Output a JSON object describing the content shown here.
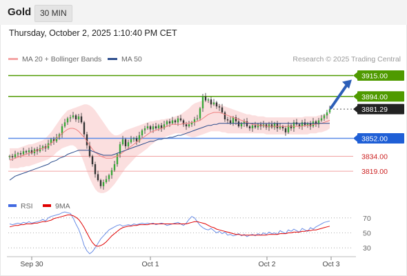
{
  "header": {
    "title": "Gold",
    "timeframe": "30 MIN"
  },
  "datetime": "Thursday, October 2, 2025 1:10:40 PM CET",
  "legend": [
    {
      "label": "MA 20 + Bollinger Bands",
      "color": "#f08080"
    },
    {
      "label": "MA 50",
      "color": "#2b4c8c"
    }
  ],
  "credit": "Research © 2025 Trading Central",
  "rsi_legend": [
    {
      "label": "RSI",
      "color": "#4169e1"
    },
    {
      "label": "9MA",
      "color": "#e00000"
    }
  ],
  "price_levels": [
    {
      "label": "3915.00",
      "value": 3915.0,
      "kind": "target",
      "color": "#4f9a00"
    },
    {
      "label": "3894.00",
      "value": 3894.0,
      "kind": "resistance",
      "color": "#4f9a00"
    },
    {
      "label": "3881.29",
      "value": 3881.29,
      "kind": "last",
      "color": "#222222"
    },
    {
      "label": "3852.00",
      "value": 3852.0,
      "kind": "pivot",
      "color": "#1f5fd6"
    },
    {
      "label": "3834.00",
      "value": 3834.0,
      "kind": "support",
      "color": "#cc2222"
    },
    {
      "label": "3819.00",
      "value": 3819.0,
      "kind": "support",
      "color": "#cc2222"
    }
  ],
  "rsi_ticks": [
    "70",
    "50",
    "30"
  ],
  "x_ticks": [
    "Sep 30",
    "Oct 1",
    "Oct 2",
    "Oct 3"
  ],
  "chart_data": {
    "type": "candlestick",
    "title": "Gold",
    "timeframe": "30 MIN",
    "x_ticks": [
      "Sep 30",
      "Oct 1",
      "Oct 2",
      "Oct 3"
    ],
    "price_range": [
      3790,
      3925
    ],
    "rsi_range": [
      20,
      80
    ],
    "grid": false,
    "last_price": 3881.29,
    "arrow": {
      "direction": "up",
      "target": 3915.0
    },
    "close": [
      3834,
      3833,
      3836,
      3837,
      3836,
      3839,
      3838,
      3840,
      3837,
      3841,
      3839,
      3842,
      3844,
      3842,
      3847,
      3851,
      3849,
      3853,
      3856,
      3864,
      3868,
      3872,
      3873,
      3875,
      3871,
      3874,
      3868,
      3856,
      3845,
      3834,
      3826,
      3816,
      3810,
      3804,
      3808,
      3811,
      3815,
      3820,
      3826,
      3836,
      3846,
      3851,
      3844,
      3848,
      3851,
      3852,
      3849,
      3855,
      3860,
      3862,
      3864,
      3861,
      3864,
      3862,
      3865,
      3862,
      3866,
      3869,
      3867,
      3870,
      3868,
      3872,
      3870,
      3866,
      3864,
      3866,
      3868,
      3871,
      3872,
      3882,
      3894,
      3890,
      3891,
      3886,
      3888,
      3884,
      3883,
      3878,
      3871,
      3870,
      3867,
      3873,
      3869,
      3864,
      3867,
      3869,
      3864,
      3862,
      3865,
      3863,
      3866,
      3864,
      3866,
      3863,
      3866,
      3863,
      3867,
      3862,
      3864,
      3862,
      3858,
      3865,
      3862,
      3868,
      3866,
      3864,
      3868,
      3865,
      3867,
      3864,
      3869,
      3866,
      3870,
      3872,
      3875,
      3878,
      3881.29
    ],
    "ma20": [
      3830,
      3831,
      3832,
      3833,
      3834,
      3835,
      3836,
      3837,
      3838,
      3839,
      3840,
      3841,
      3842,
      3843,
      3845,
      3847,
      3849,
      3852,
      3854,
      3857,
      3859,
      3861,
      3862,
      3862,
      3861,
      3859,
      3856,
      3853,
      3849,
      3845,
      3841,
      3838,
      3836,
      3834,
      3833,
      3832,
      3832,
      3832,
      3833,
      3834,
      3836,
      3838,
      3840,
      3842,
      3844,
      3846,
      3848,
      3850,
      3852,
      3854,
      3856,
      3858,
      3859,
      3860,
      3861,
      3862,
      3863,
      3864,
      3865,
      3866,
      3866,
      3866,
      3866,
      3867,
      3867,
      3867,
      3868,
      3868,
      3869,
      3870,
      3872,
      3874,
      3876,
      3877,
      3878,
      3878,
      3878,
      3877,
      3876,
      3875,
      3874,
      3873,
      3872,
      3871,
      3870,
      3869,
      3868,
      3867,
      3866,
      3866,
      3865,
      3865,
      3865,
      3864,
      3864,
      3864,
      3864,
      3864,
      3864,
      3864,
      3864,
      3864,
      3864,
      3864,
      3864,
      3864,
      3864,
      3865,
      3865,
      3865,
      3866,
      3866,
      3867,
      3867,
      3868,
      3869,
      3870
    ],
    "bb_upper": [
      3842,
      3842,
      3842,
      3842,
      3843,
      3844,
      3845,
      3846,
      3846,
      3847,
      3848,
      3849,
      3850,
      3852,
      3855,
      3858,
      3862,
      3866,
      3870,
      3874,
      3877,
      3880,
      3881,
      3882,
      3883,
      3884,
      3885,
      3886,
      3886,
      3885,
      3883,
      3880,
      3876,
      3872,
      3868,
      3864,
      3860,
      3857,
      3855,
      3855,
      3856,
      3858,
      3860,
      3861,
      3862,
      3863,
      3864,
      3865,
      3866,
      3867,
      3868,
      3869,
      3869,
      3870,
      3870,
      3871,
      3871,
      3872,
      3872,
      3873,
      3874,
      3875,
      3876,
      3878,
      3880,
      3882,
      3885,
      3887,
      3888,
      3889,
      3890,
      3890,
      3890,
      3889,
      3888,
      3887,
      3886,
      3885,
      3884,
      3883,
      3882,
      3881,
      3880,
      3879,
      3878,
      3877,
      3876,
      3876,
      3875,
      3875,
      3874,
      3874,
      3874,
      3873,
      3873,
      3873,
      3873,
      3873,
      3873,
      3873,
      3873,
      3873,
      3873,
      3873,
      3873,
      3873,
      3873,
      3874,
      3874,
      3874,
      3874,
      3874,
      3875,
      3875,
      3876,
      3876,
      3877
    ],
    "bb_lower": [
      3822,
      3822,
      3822,
      3822,
      3823,
      3823,
      3824,
      3824,
      3825,
      3826,
      3827,
      3828,
      3829,
      3830,
      3831,
      3833,
      3835,
      3838,
      3840,
      3842,
      3843,
      3844,
      3845,
      3845,
      3843,
      3839,
      3834,
      3827,
      3819,
      3812,
      3806,
      3801,
      3798,
      3797,
      3797,
      3798,
      3800,
      3803,
      3806,
      3810,
      3814,
      3818,
      3822,
      3825,
      3828,
      3831,
      3834,
      3836,
      3838,
      3840,
      3842,
      3845,
      3847,
      3849,
      3851,
      3852,
      3853,
      3854,
      3855,
      3856,
      3857,
      3857,
      3857,
      3856,
      3855,
      3854,
      3853,
      3853,
      3854,
      3855,
      3856,
      3857,
      3858,
      3859,
      3859,
      3859,
      3859,
      3858,
      3858,
      3857,
      3857,
      3857,
      3857,
      3857,
      3857,
      3857,
      3857,
      3857,
      3857,
      3857,
      3857,
      3857,
      3857,
      3856,
      3856,
      3856,
      3856,
      3856,
      3856,
      3856,
      3856,
      3856,
      3856,
      3856,
      3856,
      3856,
      3856,
      3856,
      3856,
      3857,
      3857,
      3857,
      3858,
      3858,
      3859,
      3860,
      3862
    ],
    "ma50": [
      3810,
      3812,
      3814,
      3815,
      3816,
      3817,
      3818,
      3819,
      3820,
      3821,
      3822,
      3823,
      3824,
      3825,
      3826,
      3828,
      3829,
      3830,
      3832,
      3833,
      3834,
      3836,
      3837,
      3838,
      3839,
      3840,
      3840,
      3840,
      3840,
      3840,
      3839,
      3838,
      3837,
      3836,
      3835,
      3835,
      3835,
      3835,
      3836,
      3837,
      3838,
      3839,
      3840,
      3841,
      3842,
      3843,
      3844,
      3845,
      3846,
      3847,
      3848,
      3849,
      3849,
      3850,
      3851,
      3851,
      3852,
      3852,
      3853,
      3853,
      3854,
      3855,
      3855,
      3856,
      3857,
      3858,
      3859,
      3860,
      3861,
      3862,
      3863,
      3864,
      3865,
      3865,
      3866,
      3866,
      3867,
      3867,
      3867,
      3867,
      3867,
      3867,
      3867,
      3867,
      3867,
      3867,
      3867,
      3867,
      3867,
      3867,
      3867,
      3867,
      3867,
      3867,
      3867,
      3867,
      3867,
      3867,
      3867,
      3867,
      3867,
      3867,
      3867,
      3867,
      3867,
      3867,
      3867,
      3867,
      3867,
      3867,
      3867,
      3867,
      3867,
      3867,
      3867,
      3867,
      3867
    ],
    "rsi": [
      62,
      61,
      62,
      63,
      62,
      64,
      63,
      65,
      63,
      64,
      65,
      66,
      68,
      66,
      70,
      72,
      73,
      74,
      75,
      77,
      78,
      77,
      76,
      70,
      62,
      55,
      45,
      33,
      26,
      22,
      25,
      30,
      36,
      42,
      46,
      50,
      54,
      56,
      58,
      60,
      61,
      59,
      60,
      61,
      60,
      62,
      61,
      62,
      63,
      62,
      63,
      62,
      63,
      61,
      62,
      63,
      62,
      60,
      61,
      62,
      63,
      64,
      62,
      60,
      63,
      68,
      72,
      70,
      65,
      60,
      57,
      55,
      54,
      56,
      53,
      50,
      52,
      49,
      51,
      47,
      48,
      46,
      47,
      49,
      46,
      48,
      45,
      47,
      48,
      46,
      49,
      47,
      50,
      48,
      51,
      49,
      50,
      48,
      53,
      51,
      49,
      54,
      52,
      55,
      53,
      51,
      56,
      54,
      52,
      57,
      55,
      58,
      60,
      62,
      64,
      65,
      66
    ],
    "rsi_ma": [
      58,
      59,
      60,
      60,
      61,
      61,
      62,
      62,
      62,
      63,
      63,
      64,
      65,
      65,
      66,
      67,
      69,
      70,
      71,
      72,
      73,
      74,
      74,
      73,
      71,
      68,
      63,
      57,
      50,
      43,
      37,
      33,
      32,
      33,
      35,
      38,
      42,
      46,
      49,
      52,
      55,
      57,
      58,
      59,
      59,
      60,
      60,
      61,
      61,
      61,
      61,
      62,
      62,
      62,
      62,
      62,
      62,
      62,
      62,
      62,
      62,
      62,
      62,
      62,
      62,
      63,
      64,
      65,
      65,
      64,
      63,
      62,
      60,
      58,
      57,
      55,
      54,
      53,
      52,
      51,
      50,
      49,
      48,
      48,
      47,
      47,
      47,
      47,
      47,
      47,
      47,
      47,
      47,
      47,
      48,
      48,
      48,
      48,
      49,
      49,
      49,
      50,
      50,
      51,
      51,
      51,
      52,
      52,
      53,
      53,
      54,
      54,
      55,
      56,
      57,
      58,
      59
    ]
  }
}
